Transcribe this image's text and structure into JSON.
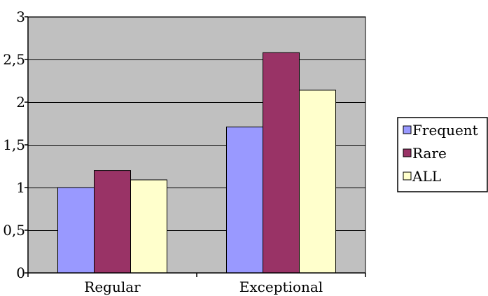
{
  "chart_data": {
    "type": "bar",
    "categories": [
      "Regular",
      "Exceptional"
    ],
    "series": [
      {
        "name": "Frequent",
        "values": [
          1.0,
          1.71
        ],
        "color": "#9999ff"
      },
      {
        "name": "Rare",
        "values": [
          1.2,
          2.58
        ],
        "color": "#993366"
      },
      {
        "name": "ALL",
        "values": [
          1.09,
          2.14
        ],
        "color": "#ffffcc"
      }
    ],
    "ylim": [
      0,
      3
    ],
    "yticks": [
      "0",
      "0,5",
      "1",
      "1,5",
      "2",
      "2,5",
      "3"
    ],
    "grid": true,
    "legend_position": "right",
    "plot_background": "#c0c0c0"
  }
}
